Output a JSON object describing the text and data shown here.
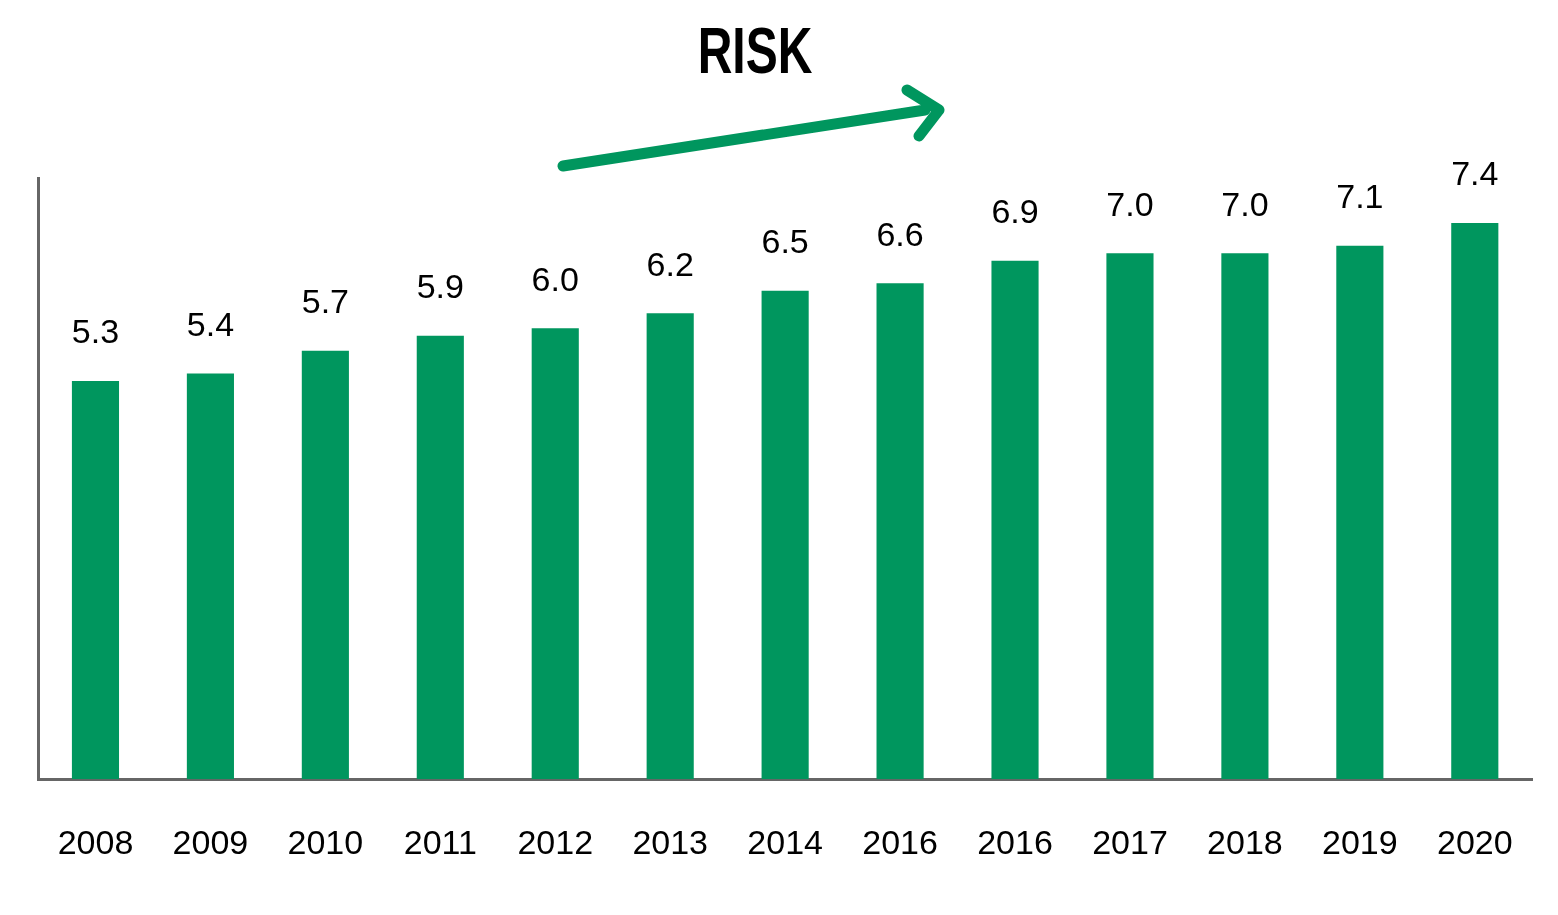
{
  "chart_data": {
    "type": "bar",
    "title": "RISK",
    "categories": [
      "2008",
      "2009",
      "2010",
      "2011",
      "2012",
      "2013",
      "2014",
      "2016",
      "2016",
      "2017",
      "2018",
      "2019",
      "2020"
    ],
    "values": [
      5.3,
      5.4,
      5.7,
      5.9,
      6.0,
      6.2,
      6.5,
      6.6,
      6.9,
      7.0,
      7.0,
      7.1,
      7.4
    ],
    "value_labels": [
      "5.3",
      "5.4",
      "5.7",
      "5.9",
      "6.0",
      "6.2",
      "6.5",
      "6.6",
      "6.9",
      "7.0",
      "7.0",
      "7.1",
      "7.4"
    ],
    "color": "#00965e",
    "grid": false,
    "legend": false
  }
}
